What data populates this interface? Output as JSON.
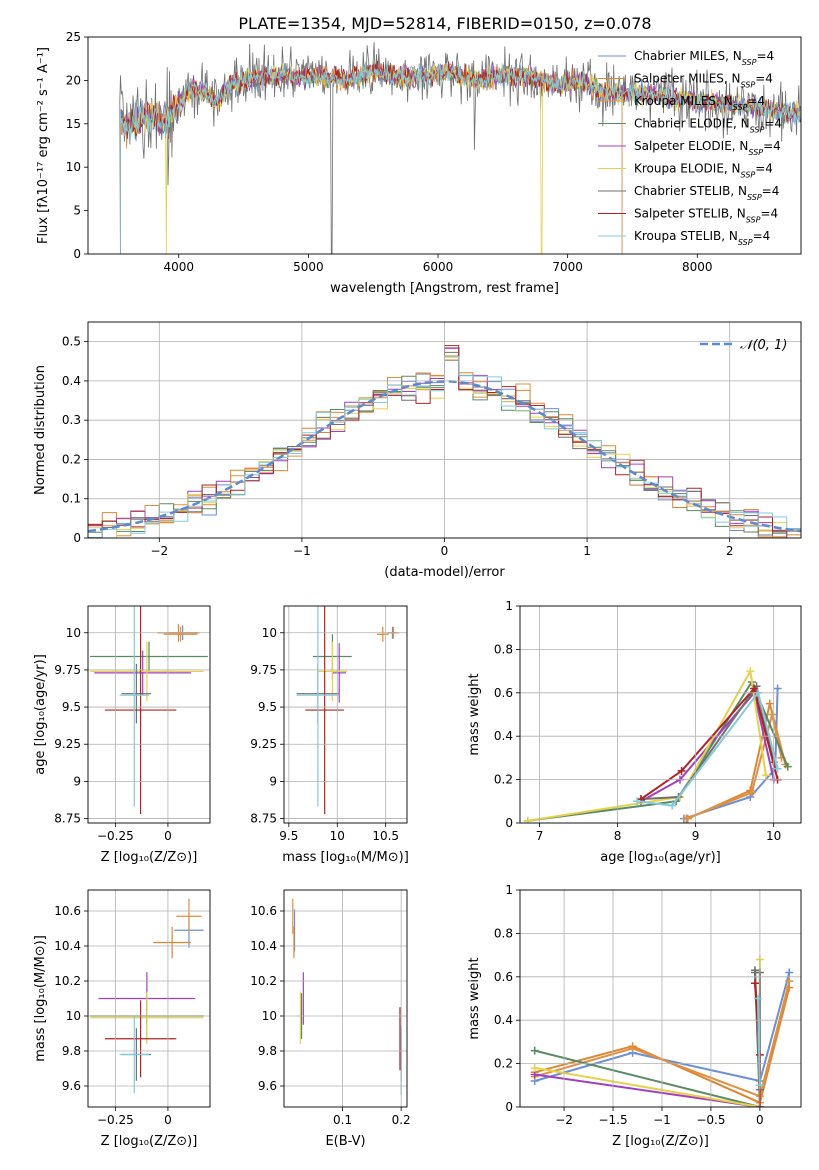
{
  "colors": [
    "#6a8fd8",
    "#e0862f",
    "#e09040",
    "#5a8a62",
    "#a040c0",
    "#e6d24a",
    "#707070",
    "#b22222",
    "#80ccd8"
  ],
  "chart_data": [
    {
      "id": "spectrum",
      "type": "line",
      "title": "PLATE=1354, MJD=52814, FIBERID=0150, z=0.078",
      "xlabel": "wavelength [Angstrom, rest frame]",
      "ylabel": "Flux [fλ10⁻¹⁷ erg cm⁻² s⁻¹ A⁻¹]",
      "xlim": [
        3300,
        8800
      ],
      "ylim": [
        0,
        25
      ],
      "xticks": [
        4000,
        5000,
        6000,
        7000,
        8000
      ],
      "yticks": [
        0,
        5,
        10,
        15,
        20,
        25
      ],
      "grid": false,
      "legend_position": "top-right",
      "series": [
        {
          "name": "Chabrier MILES, N_SSP=4"
        },
        {
          "name": "Salpeter MILES, N_SSP=4"
        },
        {
          "name": "Kroupa MILES, N_SSP=4"
        },
        {
          "name": "Chabrier ELODIE, N_SSP=4"
        },
        {
          "name": "Salpeter ELODIE, N_SSP=4"
        },
        {
          "name": "Kroupa ELODIE, N_SSP=4"
        },
        {
          "name": "Chabrier STELIB, N_SSP=4"
        },
        {
          "name": "Salpeter STELIB, N_SSP=4"
        },
        {
          "name": "Kroupa STELIB, N_SSP=4"
        }
      ],
      "data_profile": {
        "x": [
          3550,
          3600,
          3700,
          3800,
          3900,
          4000,
          4100,
          4200,
          4300,
          4400,
          4500,
          4700,
          4900,
          5100,
          5300,
          5500,
          5700,
          5900,
          6100,
          6300,
          6500,
          6700,
          6900,
          7100,
          7300,
          7450,
          7600,
          7800,
          8000,
          8200,
          8400,
          8600,
          8800
        ],
        "y": [
          15.5,
          14.5,
          15.5,
          16.0,
          15.0,
          17.5,
          19.0,
          18.5,
          17.5,
          19.5,
          20.0,
          20.5,
          20.5,
          20.5,
          20.0,
          21.0,
          20.5,
          20.5,
          21.0,
          20.0,
          20.5,
          20.5,
          19.5,
          20.0,
          18.5,
          18.5,
          18.5,
          18.0,
          17.5,
          17.5,
          17.0,
          16.5,
          16.0
        ]
      }
    },
    {
      "id": "residuals",
      "type": "histogram",
      "xlabel": "(data-model)/error",
      "ylabel": "Normed distribution",
      "xlim": [
        -2.5,
        2.5
      ],
      "ylim": [
        0,
        0.55
      ],
      "xticks": [
        -2,
        -1,
        0,
        1,
        2
      ],
      "yticks": [
        0.0,
        0.1,
        0.2,
        0.3,
        0.4,
        0.5
      ],
      "grid": true,
      "legend": "𝒩(0, 1)",
      "legend_position": "top-right",
      "bin_width": 0.1
    },
    {
      "id": "age-vs-Z",
      "type": "scatter",
      "xlabel": "Z [log₁₀(Z/Z⊙)]",
      "ylabel": "age  [log₁₀(age/yr)]",
      "xlim": [
        -0.38,
        0.2
      ],
      "ylim": [
        8.72,
        10.18
      ],
      "xticks": [
        -0.25,
        0.0
      ],
      "yticks": [
        8.75,
        9.0,
        9.25,
        9.5,
        9.75,
        10.0
      ],
      "grid": true,
      "points": [
        {
          "x": 0.07,
          "y": 10.0,
          "xe": 0.07,
          "ye": 0.05,
          "c": 0
        },
        {
          "x": 0.05,
          "y": 10.0,
          "xe": 0.1,
          "ye": 0.06,
          "c": 1
        },
        {
          "x": 0.06,
          "y": 9.99,
          "xe": 0.08,
          "ye": 0.05,
          "c": 2
        },
        {
          "x": -0.09,
          "y": 9.84,
          "xe": 0.28,
          "ye": 0.1,
          "c": 3
        },
        {
          "x": -0.12,
          "y": 9.73,
          "xe": 0.23,
          "ye": 0.15,
          "c": 4
        },
        {
          "x": -0.1,
          "y": 9.74,
          "xe": 0.27,
          "ye": 0.2,
          "c": 5
        },
        {
          "x": -0.15,
          "y": 9.59,
          "xe": 0.07,
          "ye": 0.2,
          "c": 6
        },
        {
          "x": -0.13,
          "y": 9.48,
          "xe": 0.17,
          "ye": 0.7,
          "c": 7
        },
        {
          "x": -0.16,
          "y": 9.58,
          "xe": 0.07,
          "ye": 0.75,
          "c": 8
        }
      ]
    },
    {
      "id": "age-vs-mass",
      "type": "scatter",
      "xlabel": "mass [log₁₀(M/M⊙)]",
      "ylabel": "",
      "xlim": [
        9.45,
        10.72
      ],
      "ylim": [
        8.72,
        10.18
      ],
      "xticks": [
        9.5,
        10.0,
        10.5
      ],
      "yticks": [
        8.75,
        9.0,
        9.25,
        9.5,
        9.75,
        10.0
      ],
      "grid": true,
      "points": [
        {
          "x": 10.57,
          "y": 10.0,
          "xe": 0.05,
          "ye": 0.04,
          "c": 0
        },
        {
          "x": 10.47,
          "y": 9.99,
          "xe": 0.06,
          "ye": 0.05,
          "c": 1
        },
        {
          "x": 10.58,
          "y": 10.0,
          "xe": 0.06,
          "ye": 0.04,
          "c": 2
        },
        {
          "x": 9.95,
          "y": 9.84,
          "xe": 0.2,
          "ye": 0.15,
          "c": 3
        },
        {
          "x": 10.02,
          "y": 9.73,
          "xe": 0.07,
          "ye": 0.2,
          "c": 4
        },
        {
          "x": 9.95,
          "y": 9.74,
          "xe": 0.15,
          "ye": 0.2,
          "c": 5
        },
        {
          "x": 9.8,
          "y": 9.59,
          "xe": 0.22,
          "ye": 0.2,
          "c": 6
        },
        {
          "x": 9.87,
          "y": 9.48,
          "xe": 0.2,
          "ye": 0.7,
          "c": 7
        },
        {
          "x": 9.8,
          "y": 9.58,
          "xe": 0.22,
          "ye": 0.75,
          "c": 8
        }
      ]
    },
    {
      "id": "weight-vs-age",
      "type": "line",
      "xlabel": "age  [log₁₀(age/yr)]",
      "ylabel": "mass weight",
      "xlim": [
        6.75,
        10.35
      ],
      "ylim": [
        0,
        1
      ],
      "xticks": [
        7,
        8,
        9,
        10
      ],
      "yticks": [
        0.0,
        0.2,
        0.4,
        0.6,
        0.8,
        1.0
      ],
      "grid": true,
      "series": [
        {
          "c": 0,
          "x": [
            8.85,
            9.7,
            10.02,
            10.05
          ],
          "y": [
            0.02,
            0.12,
            0.25,
            0.62
          ]
        },
        {
          "c": 1,
          "x": [
            8.9,
            9.7,
            9.95,
            10.15
          ],
          "y": [
            0.02,
            0.15,
            0.55,
            0.27
          ]
        },
        {
          "c": 2,
          "x": [
            8.88,
            9.72,
            9.98,
            10.1
          ],
          "y": [
            0.02,
            0.14,
            0.5,
            0.3
          ]
        },
        {
          "c": 3,
          "x": [
            6.85,
            8.75,
            9.72,
            10.18
          ],
          "y": [
            0.01,
            0.1,
            0.65,
            0.26
          ]
        },
        {
          "c": 4,
          "x": [
            8.3,
            8.8,
            9.75,
            10.0
          ],
          "y": [
            0.1,
            0.2,
            0.6,
            0.2
          ]
        },
        {
          "c": 5,
          "x": [
            6.85,
            8.8,
            9.7,
            9.9
          ],
          "y": [
            0.01,
            0.12,
            0.7,
            0.22
          ]
        },
        {
          "c": 6,
          "x": [
            8.3,
            8.78,
            9.78,
            10.0
          ],
          "y": [
            0.11,
            0.12,
            0.63,
            0.28
          ]
        },
        {
          "c": 7,
          "x": [
            8.3,
            8.82,
            9.75,
            10.05
          ],
          "y": [
            0.11,
            0.24,
            0.62,
            0.2
          ]
        },
        {
          "c": 8,
          "x": [
            8.25,
            8.7,
            9.8,
            10.05
          ],
          "y": [
            0.1,
            0.08,
            0.6,
            0.25
          ]
        }
      ]
    },
    {
      "id": "mass-vs-Z",
      "type": "scatter",
      "xlabel": "Z [log₁₀(Z/Z⊙)]",
      "ylabel": "mass [log₁₀(M/M⊙)]",
      "xlim": [
        -0.38,
        0.2
      ],
      "ylim": [
        9.48,
        10.72
      ],
      "xticks": [
        -0.25,
        0.0
      ],
      "yticks": [
        9.6,
        9.8,
        10.0,
        10.2,
        10.4,
        10.6
      ],
      "grid": true,
      "points": [
        {
          "x": 0.1,
          "y": 10.49,
          "xe": 0.07,
          "ye": 0.1,
          "c": 0
        },
        {
          "x": 0.02,
          "y": 10.42,
          "xe": 0.09,
          "ye": 0.09,
          "c": 1
        },
        {
          "x": 0.1,
          "y": 10.57,
          "xe": 0.06,
          "ye": 0.1,
          "c": 2
        },
        {
          "x": -0.1,
          "y": 10.0,
          "xe": 0.27,
          "ye": 0.15,
          "c": 3
        },
        {
          "x": -0.1,
          "y": 10.1,
          "xe": 0.23,
          "ye": 0.15,
          "c": 4
        },
        {
          "x": -0.1,
          "y": 9.99,
          "xe": 0.27,
          "ye": 0.15,
          "c": 5
        },
        {
          "x": -0.15,
          "y": 9.78,
          "xe": 0.07,
          "ye": 0.15,
          "c": 6
        },
        {
          "x": -0.13,
          "y": 9.87,
          "xe": 0.17,
          "ye": 0.22,
          "c": 7
        },
        {
          "x": -0.16,
          "y": 9.78,
          "xe": 0.07,
          "ye": 0.22,
          "c": 8
        }
      ]
    },
    {
      "id": "mass-vs-EBV",
      "type": "scatter",
      "xlabel": "E(B-V)",
      "ylabel": "",
      "xlim": [
        0.0,
        0.21
      ],
      "ylim": [
        9.48,
        10.72
      ],
      "xticks": [
        0.1,
        0.2
      ],
      "yticks": [
        9.6,
        9.8,
        10.0,
        10.2,
        10.4,
        10.6
      ],
      "grid": true,
      "points": [
        {
          "x": 0.018,
          "y": 10.49,
          "ye": 0.12,
          "c": 0
        },
        {
          "x": 0.017,
          "y": 10.42,
          "ye": 0.09,
          "c": 1
        },
        {
          "x": 0.015,
          "y": 10.57,
          "ye": 0.1,
          "c": 2
        },
        {
          "x": 0.03,
          "y": 10.0,
          "ye": 0.13,
          "c": 3
        },
        {
          "x": 0.033,
          "y": 10.1,
          "ye": 0.15,
          "c": 4
        },
        {
          "x": 0.028,
          "y": 9.99,
          "ye": 0.15,
          "c": 5
        },
        {
          "x": 0.2,
          "y": 9.78,
          "ye": 0.15,
          "c": 6
        },
        {
          "x": 0.198,
          "y": 9.87,
          "ye": 0.18,
          "c": 7
        },
        {
          "x": 0.2,
          "y": 9.75,
          "ye": 0.2,
          "c": 8
        }
      ]
    },
    {
      "id": "weight-vs-Z",
      "type": "line",
      "xlabel": "Z [log₁₀(Z/Z⊙)]",
      "ylabel": "mass weight",
      "xlim": [
        -2.45,
        0.42
      ],
      "ylim": [
        0,
        1
      ],
      "xticks": [
        -2.0,
        -1.5,
        -1.0,
        -0.5,
        0.0
      ],
      "yticks": [
        0.0,
        0.2,
        0.4,
        0.6,
        0.8,
        1.0
      ],
      "grid": true,
      "series": [
        {
          "c": 0,
          "x": [
            -2.3,
            -1.3,
            0.0,
            0.3
          ],
          "y": [
            0.12,
            0.25,
            0.12,
            0.62
          ]
        },
        {
          "c": 1,
          "x": [
            -2.3,
            -1.3,
            0.0,
            0.3
          ],
          "y": [
            0.16,
            0.28,
            0.02,
            0.55
          ]
        },
        {
          "c": 2,
          "x": [
            -2.3,
            -1.3,
            0.0,
            0.3
          ],
          "y": [
            0.14,
            0.27,
            0.05,
            0.58
          ]
        },
        {
          "c": 3,
          "x": [
            -2.3,
            0.0,
            -0.05,
            0.0
          ],
          "y": [
            0.26,
            0.0,
            0.62,
            0.1
          ]
        },
        {
          "c": 4,
          "x": [
            -2.3,
            0.0
          ],
          "y": [
            0.15,
            0.0
          ]
        },
        {
          "c": 5,
          "x": [
            -2.3,
            0.0,
            0.0
          ],
          "y": [
            0.18,
            0.0,
            0.68
          ]
        },
        {
          "c": 6,
          "x": [
            -0.05,
            0.0,
            0.0
          ],
          "y": [
            0.63,
            0.08,
            0.62
          ]
        },
        {
          "c": 7,
          "x": [
            -0.05,
            0.0,
            0.0
          ],
          "y": [
            0.57,
            0.24,
            0.0
          ]
        },
        {
          "c": 8,
          "x": [
            -0.02,
            0.0
          ],
          "y": [
            0.5,
            0.1
          ]
        }
      ]
    }
  ]
}
